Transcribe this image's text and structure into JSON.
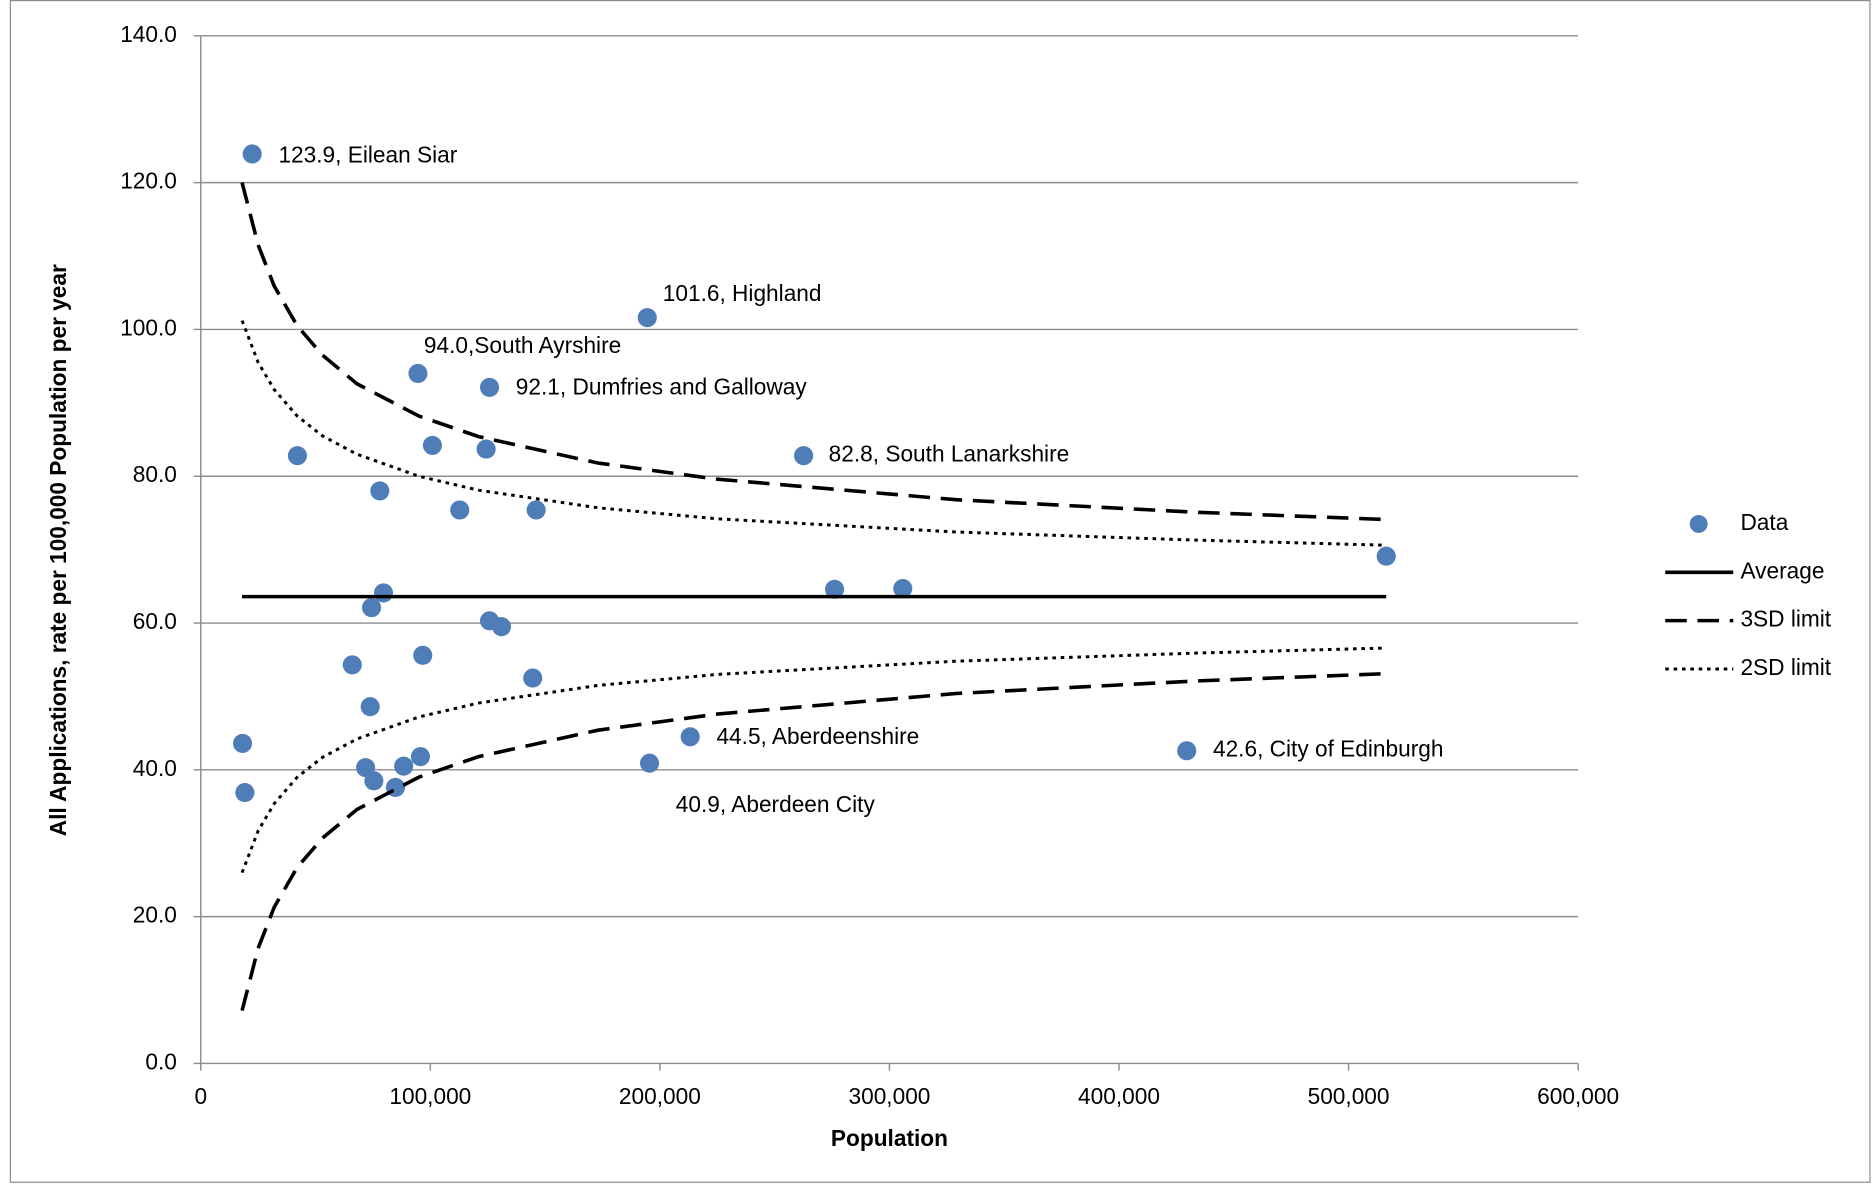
{
  "chart_data": {
    "type": "scatter",
    "x_label": "Population",
    "y_label": "All Applications, rate per 100,000 Population per year",
    "xlim": [
      0,
      600000
    ],
    "ylim": [
      0,
      140
    ],
    "xticks": [
      0,
      {
        "value": 100000,
        "label": "100,000"
      },
      {
        "value": 200000,
        "label": "200,000"
      },
      {
        "value": 300000,
        "label": "300,000"
      },
      {
        "value": 400000,
        "label": "400,000"
      },
      {
        "value": 500000,
        "label": "500,000"
      },
      {
        "value": 600000,
        "label": "600,000"
      }
    ],
    "yticks": [
      {
        "value": 0,
        "label": "0.0"
      },
      {
        "value": 20,
        "label": "20.0"
      },
      {
        "value": 40,
        "label": "40.0"
      },
      {
        "value": 60,
        "label": "60.0"
      },
      {
        "value": 80,
        "label": "80.0"
      },
      {
        "value": 100,
        "label": "100.0"
      },
      {
        "value": 120,
        "label": "120.0"
      },
      {
        "value": 140,
        "label": "140.0"
      }
    ],
    "grid": true,
    "legend": "right",
    "series": [
      {
        "name": "Data",
        "kind": "points",
        "color": "#4f7db8",
        "x": [
          22400,
          194500,
          94600,
          125800,
          262600,
          42100,
          100900,
          124300,
          78000,
          112800,
          146100,
          516400,
          276100,
          305800,
          79600,
          74400,
          125800,
          131000,
          96700,
          66000,
          144600,
          73800,
          213200,
          18200,
          429500,
          195500,
          95700,
          71800,
          88400,
          75400,
          84800,
          19200
        ],
        "values": [
          123.9,
          101.6,
          94.0,
          92.1,
          82.8,
          82.8,
          84.2,
          83.7,
          78.0,
          75.4,
          75.4,
          69.1,
          64.6,
          64.7,
          64.1,
          62.1,
          60.3,
          59.5,
          55.6,
          54.3,
          52.5,
          48.6,
          44.5,
          43.6,
          42.6,
          40.9,
          41.8,
          40.3,
          40.5,
          38.5,
          37.6,
          36.9
        ],
        "value_labels": [
          "123.9, Eilean Siar",
          "101.6, Highland",
          "94.0,South Ayrshire",
          "92.1, Dumfries and Galloway",
          "82.8, South Lanarkshire",
          null,
          null,
          null,
          null,
          null,
          null,
          null,
          null,
          null,
          null,
          null,
          null,
          null,
          null,
          null,
          null,
          null,
          "44.5, Aberdeenshire",
          null,
          "42.6, City of Edinburgh",
          "40.9, Aberdeen City",
          null,
          null,
          null,
          null,
          null,
          null
        ]
      },
      {
        "name": "Average",
        "kind": "line",
        "color": "#000000",
        "dash": "solid",
        "x": [
          18000,
          516400
        ],
        "values": [
          63.6,
          63.6
        ]
      },
      {
        "name": "3SD limit",
        "kind": "line",
        "color": "#000000",
        "dash": "dashed",
        "x": [
          18000,
          25000,
          32000,
          42000,
          53000,
          68000,
          95000,
          121000,
          173000,
          225000,
          329000,
          433000,
          516400
        ],
        "values": [
          120.0,
          111.5,
          105.9,
          100.5,
          96.5,
          92.6,
          88.2,
          85.4,
          81.8,
          79.6,
          76.8,
          75.1,
          74.1
        ],
        "lower_values": [
          7.2,
          15.7,
          21.3,
          26.7,
          30.7,
          34.6,
          39.0,
          41.8,
          45.4,
          47.6,
          50.4,
          52.1,
          53.1
        ]
      },
      {
        "name": "2SD  limit",
        "kind": "line",
        "color": "#000000",
        "dash": "dotted",
        "x": [
          18000,
          25000,
          32000,
          42000,
          53000,
          68000,
          95000,
          121000,
          173000,
          225000,
          329000,
          433000,
          516400
        ],
        "values": [
          101.2,
          95.5,
          91.8,
          88.2,
          85.5,
          83.0,
          80.0,
          78.1,
          75.7,
          74.2,
          72.4,
          71.3,
          70.6
        ],
        "lower_values": [
          26.0,
          31.7,
          35.4,
          39.0,
          41.7,
          44.2,
          47.2,
          49.1,
          51.5,
          53.0,
          54.8,
          55.9,
          56.6
        ]
      }
    ]
  }
}
